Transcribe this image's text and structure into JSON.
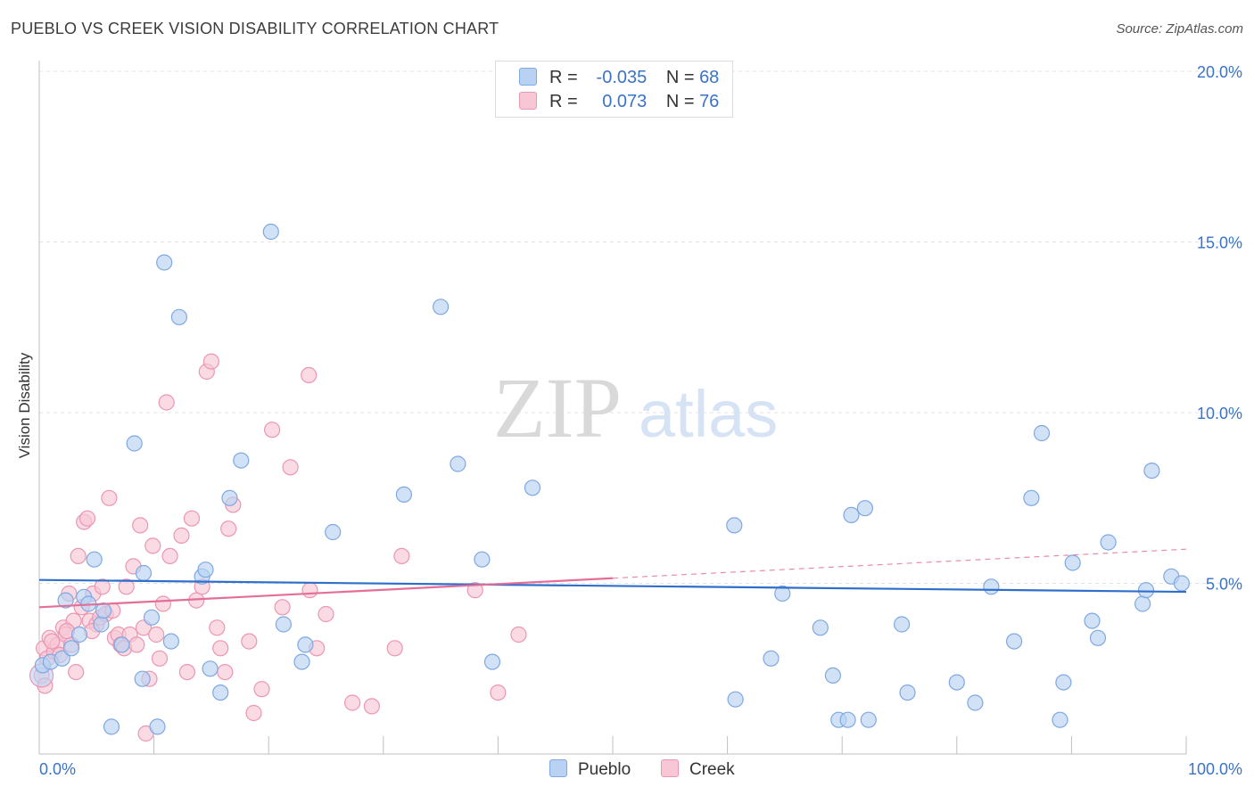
{
  "title": "PUEBLO VS CREEK VISION DISABILITY CORRELATION CHART",
  "source": "Source: ZipAtlas.com",
  "watermark": {
    "zip": "ZIP",
    "atlas": "atlas"
  },
  "legend": {
    "pueblo": {
      "r_label": "R =",
      "r_value": "-0.035",
      "n_label": "N =",
      "n_value": "68"
    },
    "creek": {
      "r_label": "R =",
      "r_value": "0.073",
      "n_label": "N =",
      "n_value": "76"
    }
  },
  "colors": {
    "pueblo_fill": "#b9d2f3",
    "pueblo_stroke": "#7fa8e0",
    "pueblo_line": "#2f6fcb",
    "creek_fill": "#f7c7d6",
    "creek_stroke": "#eb96b2",
    "creek_line": "#e36f98",
    "axis_text": "#3a73c8",
    "grid": "#e3e3e3"
  },
  "chart_data": {
    "type": "scatter",
    "title": "PUEBLO VS CREEK VISION DISABILITY CORRELATION CHART",
    "xlabel": "",
    "ylabel": "Vision Disability",
    "xlim": [
      0,
      100
    ],
    "ylim": [
      0,
      20
    ],
    "x_tick_labels": [
      "0.0%",
      "100.0%"
    ],
    "y_ticks": [
      5,
      10,
      15,
      20
    ],
    "y_tick_labels": [
      "5.0%",
      "10.0%",
      "15.0%",
      "20.0%"
    ],
    "grid": "horizontal dashed",
    "legend_position": "top-center",
    "series": [
      {
        "name": "Pueblo",
        "r": -0.035,
        "n": 68,
        "trend": {
          "x0": 0,
          "y0": 5.1,
          "x1": 100,
          "y1": 4.75
        },
        "points": [
          [
            0.3,
            2.6
          ],
          [
            1.0,
            2.7
          ],
          [
            2.0,
            2.8
          ],
          [
            2.3,
            4.5
          ],
          [
            2.8,
            3.1
          ],
          [
            3.5,
            3.5
          ],
          [
            3.9,
            4.6
          ],
          [
            4.3,
            4.4
          ],
          [
            4.8,
            5.7
          ],
          [
            5.4,
            3.8
          ],
          [
            5.6,
            4.2
          ],
          [
            6.3,
            0.8
          ],
          [
            7.2,
            3.2
          ],
          [
            8.3,
            9.1
          ],
          [
            9.0,
            2.2
          ],
          [
            9.1,
            5.3
          ],
          [
            9.8,
            4.0
          ],
          [
            10.3,
            0.8
          ],
          [
            10.9,
            14.4
          ],
          [
            11.5,
            3.3
          ],
          [
            12.2,
            12.8
          ],
          [
            14.2,
            5.2
          ],
          [
            14.5,
            5.4
          ],
          [
            14.9,
            2.5
          ],
          [
            15.8,
            1.8
          ],
          [
            16.6,
            7.5
          ],
          [
            17.6,
            8.6
          ],
          [
            20.2,
            15.3
          ],
          [
            21.3,
            3.8
          ],
          [
            22.9,
            2.7
          ],
          [
            23.2,
            3.2
          ],
          [
            25.6,
            6.5
          ],
          [
            31.8,
            7.6
          ],
          [
            35.0,
            13.1
          ],
          [
            36.5,
            8.5
          ],
          [
            38.6,
            5.7
          ],
          [
            39.5,
            2.7
          ],
          [
            43.0,
            7.8
          ],
          [
            60.6,
            6.7
          ],
          [
            60.7,
            1.6
          ],
          [
            63.8,
            2.8
          ],
          [
            64.8,
            4.7
          ],
          [
            68.1,
            3.7
          ],
          [
            69.2,
            2.3
          ],
          [
            69.7,
            1.0
          ],
          [
            70.5,
            1.0
          ],
          [
            70.8,
            7.0
          ],
          [
            72.0,
            7.2
          ],
          [
            72.3,
            1.0
          ],
          [
            75.2,
            3.8
          ],
          [
            75.7,
            1.8
          ],
          [
            80.0,
            2.1
          ],
          [
            81.6,
            1.5
          ],
          [
            83.0,
            4.9
          ],
          [
            85.0,
            3.3
          ],
          [
            86.5,
            7.5
          ],
          [
            87.4,
            9.4
          ],
          [
            89.0,
            1.0
          ],
          [
            89.3,
            2.1
          ],
          [
            90.1,
            5.6
          ],
          [
            91.8,
            3.9
          ],
          [
            92.3,
            3.4
          ],
          [
            93.2,
            6.2
          ],
          [
            96.2,
            4.4
          ],
          [
            96.5,
            4.8
          ],
          [
            97.0,
            8.3
          ],
          [
            98.7,
            5.2
          ],
          [
            99.6,
            5.0
          ]
        ]
      },
      {
        "name": "Creek",
        "r": 0.073,
        "n": 76,
        "trend": {
          "x0": 0,
          "y0": 4.3,
          "x1": 50,
          "y1": 5.15,
          "dash_x1": 100,
          "dash_y1": 6.0
        },
        "points": [
          [
            0.2,
            2.3
          ],
          [
            0.4,
            3.1
          ],
          [
            0.7,
            2.8
          ],
          [
            0.9,
            3.4
          ],
          [
            1.3,
            3.0
          ],
          [
            1.6,
            3.2
          ],
          [
            1.8,
            2.9
          ],
          [
            2.1,
            3.7
          ],
          [
            2.3,
            3.5
          ],
          [
            2.6,
            4.7
          ],
          [
            2.8,
            3.2
          ],
          [
            3.0,
            3.9
          ],
          [
            3.2,
            2.4
          ],
          [
            3.4,
            5.8
          ],
          [
            3.7,
            4.3
          ],
          [
            3.9,
            6.8
          ],
          [
            4.2,
            6.9
          ],
          [
            4.4,
            3.9
          ],
          [
            4.7,
            4.7
          ],
          [
            5.0,
            3.8
          ],
          [
            5.3,
            4.0
          ],
          [
            5.5,
            4.9
          ],
          [
            5.8,
            4.1
          ],
          [
            6.1,
            7.5
          ],
          [
            6.4,
            4.2
          ],
          [
            6.6,
            3.4
          ],
          [
            6.9,
            3.5
          ],
          [
            7.1,
            3.2
          ],
          [
            7.4,
            3.1
          ],
          [
            7.6,
            4.9
          ],
          [
            7.9,
            3.5
          ],
          [
            8.2,
            5.5
          ],
          [
            8.5,
            3.2
          ],
          [
            8.8,
            6.7
          ],
          [
            9.1,
            3.7
          ],
          [
            9.3,
            0.6
          ],
          [
            9.6,
            2.2
          ],
          [
            9.9,
            6.1
          ],
          [
            10.2,
            3.5
          ],
          [
            10.5,
            2.8
          ],
          [
            10.8,
            4.4
          ],
          [
            11.1,
            10.3
          ],
          [
            11.4,
            5.8
          ],
          [
            12.4,
            6.4
          ],
          [
            12.9,
            2.4
          ],
          [
            13.3,
            6.9
          ],
          [
            13.7,
            4.5
          ],
          [
            14.2,
            4.9
          ],
          [
            14.6,
            11.2
          ],
          [
            15.0,
            11.5
          ],
          [
            15.5,
            3.7
          ],
          [
            15.8,
            3.1
          ],
          [
            16.2,
            2.4
          ],
          [
            16.5,
            6.6
          ],
          [
            16.9,
            7.3
          ],
          [
            18.3,
            3.3
          ],
          [
            18.7,
            1.2
          ],
          [
            19.4,
            1.9
          ],
          [
            20.3,
            9.5
          ],
          [
            21.2,
            4.3
          ],
          [
            21.9,
            8.4
          ],
          [
            23.5,
            11.1
          ],
          [
            23.6,
            4.8
          ],
          [
            24.2,
            3.1
          ],
          [
            25.0,
            4.1
          ],
          [
            27.3,
            1.5
          ],
          [
            29.0,
            1.4
          ],
          [
            31.0,
            3.1
          ],
          [
            31.6,
            5.8
          ],
          [
            38.0,
            4.8
          ],
          [
            40.0,
            1.8
          ],
          [
            41.8,
            3.5
          ],
          [
            0.5,
            2.0
          ],
          [
            1.1,
            3.3
          ],
          [
            2.4,
            3.6
          ],
          [
            4.6,
            3.6
          ]
        ]
      }
    ]
  },
  "bottom_legend": {
    "pueblo": "Pueblo",
    "creek": "Creek"
  }
}
